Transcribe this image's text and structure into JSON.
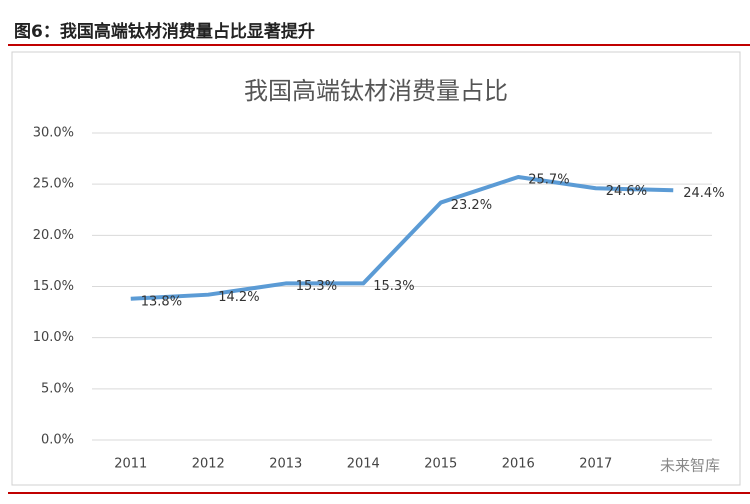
{
  "header": "图6：我国高端钛材消费量占比显著提升",
  "watermark": "未来智库",
  "chart_data": {
    "type": "line",
    "title": "我国高端钛材消费量占比",
    "categories": [
      "2011",
      "2012",
      "2013",
      "2014",
      "2015",
      "2016",
      "2017",
      null
    ],
    "series": [
      {
        "color": "#5b9bd5",
        "values": [
          13.8,
          14.2,
          15.3,
          15.3,
          23.2,
          25.7,
          24.6,
          24.4
        ],
        "value_labels": [
          "13.8%",
          "14.2%",
          "15.3%",
          "15.3%",
          "23.2%",
          "25.7%",
          "24.6%",
          "24.4%"
        ]
      }
    ],
    "ylim": [
      0,
      30
    ],
    "yticks": [
      {
        "value": 0,
        "label": "0.0%"
      },
      {
        "value": 5,
        "label": "5.0%"
      },
      {
        "value": 10,
        "label": "10.0%"
      },
      {
        "value": 15,
        "label": "15.0%"
      },
      {
        "value": 20,
        "label": "20.0%"
      },
      {
        "value": 25,
        "label": "25.0%"
      },
      {
        "value": 30,
        "label": "30.0%"
      }
    ],
    "grid": true
  }
}
